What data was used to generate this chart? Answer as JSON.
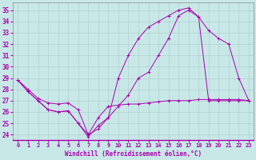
{
  "xlabel": "Windchill (Refroidissement éolien,°C)",
  "background_color": "#c8e8e8",
  "line_color": "#aa00aa",
  "grid_color": "#b0d0d0",
  "xlim": [
    -0.5,
    23.5
  ],
  "ylim": [
    23.5,
    35.7
  ],
  "xticks": [
    0,
    1,
    2,
    3,
    4,
    5,
    6,
    7,
    8,
    9,
    10,
    11,
    12,
    13,
    14,
    15,
    16,
    17,
    18,
    19,
    20,
    21,
    22,
    23
  ],
  "yticks": [
    24,
    25,
    26,
    27,
    28,
    29,
    30,
    31,
    32,
    33,
    34,
    35
  ],
  "line1_x": [
    0,
    1,
    2,
    3,
    4,
    5,
    6,
    7,
    8,
    9,
    10,
    11,
    12,
    13,
    14,
    15,
    16,
    17,
    18,
    19,
    20,
    21,
    22,
    23
  ],
  "line1_y": [
    28.8,
    28.0,
    27.2,
    26.8,
    26.7,
    26.8,
    26.2,
    24.0,
    25.5,
    26.5,
    26.6,
    26.7,
    26.7,
    26.8,
    26.9,
    27.0,
    27.0,
    27.0,
    27.1,
    27.1,
    27.1,
    27.1,
    27.1,
    27.0
  ],
  "line2_x": [
    0,
    1,
    2,
    3,
    4,
    5,
    6,
    7,
    8,
    9,
    10,
    11,
    12,
    13,
    14,
    15,
    16,
    17,
    18,
    19,
    20,
    21,
    22,
    23
  ],
  "line2_y": [
    28.8,
    27.8,
    27.0,
    26.2,
    26.0,
    26.1,
    25.0,
    24.0,
    24.5,
    25.5,
    26.5,
    27.5,
    29.0,
    29.5,
    31.0,
    32.5,
    34.5,
    35.0,
    34.4,
    33.2,
    32.5,
    32.0,
    29.0,
    27.0
  ],
  "line3_x": [
    0,
    1,
    2,
    3,
    4,
    5,
    6,
    7,
    8,
    9,
    10,
    11,
    12,
    13,
    14,
    15,
    16,
    17,
    18,
    19,
    20,
    21,
    22,
    23
  ],
  "line3_y": [
    28.8,
    27.8,
    27.0,
    26.2,
    26.0,
    26.1,
    25.0,
    23.8,
    24.8,
    25.5,
    29.0,
    31.0,
    32.5,
    33.5,
    34.0,
    34.5,
    35.0,
    35.2,
    34.4,
    27.0,
    27.0,
    27.0,
    27.0,
    27.0
  ]
}
